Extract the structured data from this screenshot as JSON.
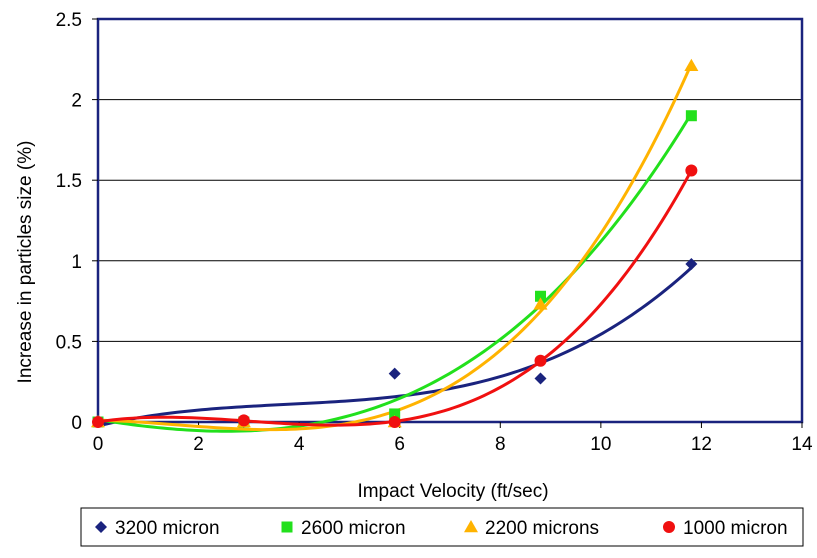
{
  "chart_data": {
    "type": "scatter",
    "title": "",
    "xlabel": "Impact Velocity (ft/sec)",
    "ylabel": "Increase in particles size (%)",
    "xlim": [
      0,
      14
    ],
    "ylim": [
      0,
      2.5
    ],
    "x_ticks": [
      "0",
      "2",
      "4",
      "6",
      "8",
      "10",
      "12",
      "14"
    ],
    "y_ticks": [
      "0",
      "0.5",
      "1",
      "1.5",
      "2",
      "2.5"
    ],
    "grid": "horizontal",
    "legend_position": "bottom",
    "trendline": "polynomial (order 3)",
    "series": [
      {
        "name": "3200 micron",
        "color": "#1a237e",
        "marker": "diamond",
        "x": [
          0,
          2.9,
          5.9,
          8.8,
          11.8
        ],
        "y": [
          0,
          0,
          0.3,
          0.27,
          0.98
        ]
      },
      {
        "name": "2600 micron",
        "color": "#22e01c",
        "marker": "square",
        "x": [
          0,
          2.9,
          5.9,
          8.8,
          11.8
        ],
        "y": [
          0,
          0,
          0.05,
          0.78,
          1.9
        ]
      },
      {
        "name": "2200 microns",
        "color": "#ffb300",
        "marker": "triangle",
        "x": [
          0,
          2.9,
          5.9,
          8.8,
          11.8
        ],
        "y": [
          0,
          0,
          0,
          0.73,
          2.21
        ]
      },
      {
        "name": "1000 micron",
        "color": "#f01010",
        "marker": "circle",
        "x": [
          0,
          2.9,
          5.9,
          8.8,
          11.8
        ],
        "y": [
          0,
          0.01,
          0,
          0.38,
          1.56
        ]
      }
    ]
  }
}
